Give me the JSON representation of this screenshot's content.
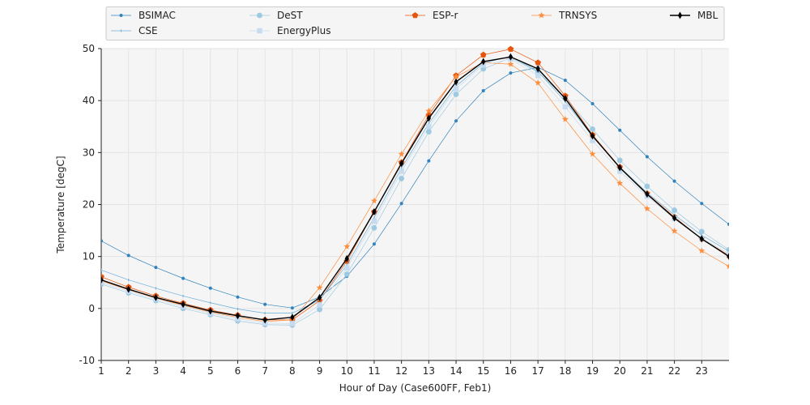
{
  "chart_data": {
    "type": "line",
    "xlabel": "Hour of Day (Case600FF, Feb1)",
    "ylabel": "Temperature [degC]",
    "xlim": [
      1,
      24
    ],
    "ylim": [
      -10,
      50
    ],
    "x_ticks": [
      1,
      2,
      3,
      4,
      5,
      6,
      7,
      8,
      9,
      10,
      11,
      12,
      13,
      14,
      15,
      16,
      17,
      18,
      19,
      20,
      21,
      22,
      23
    ],
    "y_ticks": [
      -10,
      0,
      10,
      20,
      30,
      40,
      50
    ],
    "grid": true,
    "legend_position": "top",
    "x": [
      1,
      2,
      3,
      4,
      5,
      6,
      7,
      8,
      9,
      10,
      11,
      12,
      13,
      14,
      15,
      16,
      17,
      18,
      19,
      20,
      21,
      22,
      23,
      24
    ],
    "series": [
      {
        "name": "BSIMAC",
        "color": "#3182bd",
        "marker": "point",
        "values": [
          13.0,
          10.2,
          7.9,
          5.8,
          3.9,
          2.2,
          0.8,
          0.1,
          2.2,
          6.2,
          12.4,
          20.2,
          28.4,
          36.1,
          41.9,
          45.3,
          46.4,
          43.9,
          39.4,
          34.3,
          29.2,
          24.5,
          20.2,
          16.2
        ]
      },
      {
        "name": "DeST",
        "color": "#9ecae1",
        "marker": "circle",
        "values": [
          4.7,
          3.0,
          1.5,
          0.0,
          -1.2,
          -2.4,
          -3.1,
          -3.2,
          -0.2,
          6.6,
          15.5,
          25.0,
          34.0,
          41.2,
          46.1,
          48.2,
          45.5,
          40.5,
          34.5,
          28.5,
          23.5,
          18.9,
          14.8,
          11.3
        ]
      },
      {
        "name": "ESP-r",
        "color": "#e6550d",
        "marker": "pentagon",
        "values": [
          6.1,
          4.1,
          2.4,
          1.0,
          -0.3,
          -1.3,
          -2.2,
          -2.2,
          1.5,
          9.1,
          18.6,
          28.1,
          37.2,
          44.8,
          48.8,
          49.9,
          47.3,
          40.9,
          33.4,
          27.2,
          22.1,
          17.6,
          13.4,
          10.2
        ]
      },
      {
        "name": "TRNSYS",
        "color": "#fd8d3c",
        "marker": "star",
        "values": [
          5.3,
          3.6,
          2.0,
          0.6,
          -0.7,
          -1.7,
          -2.5,
          -2.2,
          4.0,
          11.9,
          20.7,
          29.7,
          38.0,
          44.6,
          47.3,
          47.0,
          43.4,
          36.4,
          29.7,
          24.1,
          19.2,
          14.9,
          11.1,
          8.1
        ]
      },
      {
        "name": "CSE",
        "color": "#6baed6",
        "marker": "tick",
        "values": [
          7.4,
          5.5,
          3.9,
          2.4,
          1.1,
          -0.1,
          -0.9,
          -0.9,
          1.6,
          8.4,
          17.5,
          27.0,
          35.6,
          42.8,
          47.2,
          48.5,
          45.6,
          39.8,
          33.1,
          27.2,
          22.3,
          18.0,
          14.1,
          11.0
        ]
      },
      {
        "name": "EnergyPlus",
        "color": "#c6dbef",
        "marker": "square",
        "values": [
          5.0,
          3.3,
          1.8,
          0.4,
          -0.9,
          -2.0,
          -2.8,
          -2.9,
          0.7,
          7.8,
          16.8,
          26.4,
          35.0,
          42.3,
          46.8,
          48.0,
          44.8,
          38.8,
          32.3,
          26.4,
          21.6,
          17.3,
          13.5,
          10.5
        ]
      },
      {
        "name": "MBL",
        "color": "#000000",
        "marker": "diamond",
        "values": [
          5.5,
          3.7,
          2.1,
          0.8,
          -0.5,
          -1.4,
          -2.2,
          -1.7,
          2.1,
          9.6,
          18.6,
          27.9,
          36.6,
          43.6,
          47.5,
          48.4,
          46.1,
          40.4,
          33.2,
          27.1,
          22.0,
          17.4,
          13.4,
          10.0
        ]
      }
    ],
    "legend": [
      [
        "BSIMAC",
        "CSE"
      ],
      [
        "DeST",
        "EnergyPlus"
      ],
      [
        "ESP-r"
      ],
      [
        "TRNSYS"
      ],
      [
        "MBL"
      ]
    ]
  }
}
